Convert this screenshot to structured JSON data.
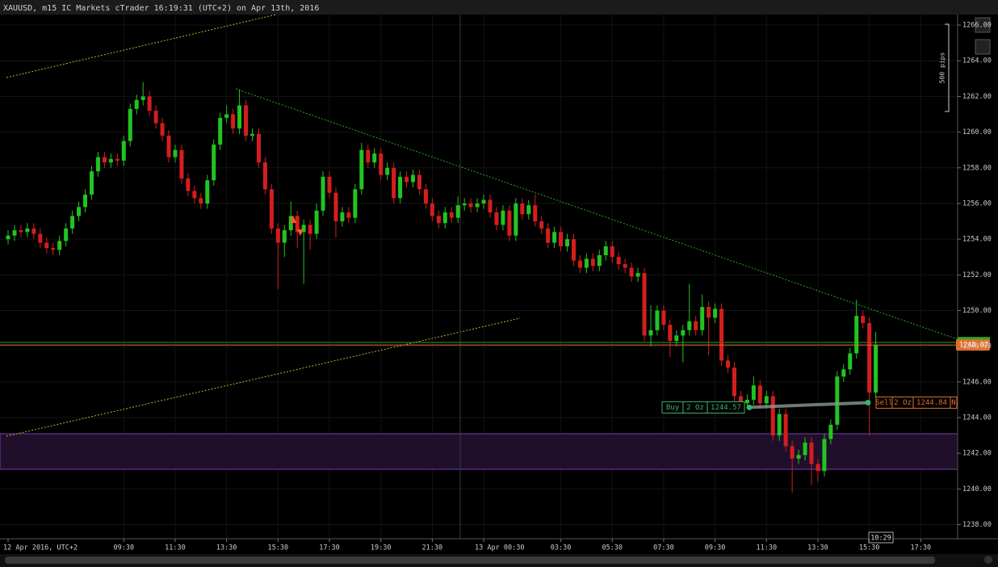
{
  "header": {
    "title": "XAUUSD, m15 IC Markets cTrader 16:19:31 (UTC+2) on Apr 13th, 2016"
  },
  "chart_data": {
    "type": "candlestick",
    "up_color": "#22c422",
    "down_color": "#d41e1e",
    "open": [
      1254.0,
      1254.2,
      1254.5,
      1254.4,
      1254.6,
      1254.3,
      1253.8,
      1253.5,
      1253.4,
      1253.9,
      1254.6,
      1255.3,
      1255.8,
      1256.5,
      1257.8,
      1258.6,
      1258.3,
      1258.5,
      1258.4,
      1259.5,
      1261.3,
      1261.8,
      1262.0,
      1261.2,
      1260.5,
      1259.8,
      1258.6,
      1259.0,
      1257.4,
      1256.7,
      1256.3,
      1256.0,
      1257.3,
      1259.3,
      1260.8,
      1261.0,
      1260.2,
      1261.5,
      1259.8,
      1259.9,
      1258.3,
      1256.8,
      1254.6,
      1253.8,
      1254.5,
      1255.3,
      1254.4,
      1254.8,
      1254.3,
      1255.6,
      1257.5,
      1256.6,
      1255.0,
      1255.5,
      1255.2,
      1256.8,
      1259.0,
      1258.3,
      1258.8,
      1257.6,
      1258.0,
      1256.3,
      1257.5,
      1257.2,
      1257.6,
      1256.8,
      1256.0,
      1255.3,
      1254.9,
      1255.5,
      1255.2,
      1255.9,
      1256.0,
      1255.8,
      1256.0,
      1256.2,
      1255.5,
      1254.8,
      1255.6,
      1254.2,
      1256.0,
      1255.4,
      1255.9,
      1255.0,
      1254.6,
      1253.8,
      1254.4,
      1253.6,
      1254.0,
      1252.8,
      1252.4,
      1252.9,
      1252.5,
      1253.1,
      1253.6,
      1253.0,
      1252.6,
      1252.4,
      1251.9,
      1252.1,
      1248.6,
      1248.9,
      1250.0,
      1249.2,
      1248.3,
      1248.6,
      1248.9,
      1249.4,
      1248.9,
      1250.2,
      1249.6,
      1250.1,
      1247.2,
      1246.8,
      1245.2,
      1244.8,
      1245.0,
      1245.8,
      1244.8,
      1245.2,
      1243.0,
      1244.2,
      1242.4,
      1241.7,
      1241.9,
      1242.6,
      1241.4,
      1241.0,
      1242.8,
      1243.6,
      1246.3,
      1246.7,
      1247.6,
      1249.7,
      1249.3,
      1245.4
    ],
    "high": [
      1254.5,
      1254.8,
      1254.8,
      1254.9,
      1254.9,
      1254.6,
      1254.1,
      1253.8,
      1254.2,
      1254.9,
      1255.6,
      1256.1,
      1256.8,
      1258.1,
      1258.9,
      1258.9,
      1258.8,
      1258.8,
      1259.8,
      1261.6,
      1262.1,
      1262.8,
      1262.3,
      1261.5,
      1260.8,
      1260.1,
      1259.3,
      1259.3,
      1257.7,
      1257.0,
      1256.6,
      1257.6,
      1259.6,
      1261.1,
      1261.5,
      1261.3,
      1262.4,
      1261.8,
      1260.2,
      1260.2,
      1258.6,
      1257.1,
      1254.9,
      1254.8,
      1256.1,
      1255.6,
      1255.1,
      1255.1,
      1256.0,
      1257.8,
      1257.8,
      1256.9,
      1255.8,
      1255.8,
      1257.1,
      1259.4,
      1259.3,
      1259.1,
      1259.1,
      1258.3,
      1258.3,
      1257.8,
      1257.8,
      1257.9,
      1257.9,
      1257.1,
      1256.3,
      1255.6,
      1255.8,
      1255.8,
      1256.4,
      1256.3,
      1256.3,
      1256.3,
      1256.5,
      1256.5,
      1255.8,
      1255.9,
      1255.9,
      1256.3,
      1256.3,
      1256.2,
      1256.5,
      1255.3,
      1254.9,
      1254.7,
      1254.7,
      1254.3,
      1254.3,
      1253.1,
      1253.2,
      1253.2,
      1253.4,
      1253.9,
      1253.9,
      1253.3,
      1252.9,
      1252.7,
      1252.4,
      1252.4,
      1250.3,
      1250.3,
      1250.3,
      1249.5,
      1248.9,
      1249.2,
      1251.5,
      1249.7,
      1250.9,
      1250.5,
      1250.4,
      1250.4,
      1247.5,
      1247.1,
      1245.5,
      1245.3,
      1246.3,
      1246.1,
      1245.5,
      1245.5,
      1244.5,
      1244.5,
      1242.7,
      1242.2,
      1242.9,
      1242.9,
      1241.7,
      1243.1,
      1243.9,
      1246.6,
      1247.0,
      1247.9,
      1250.6,
      1250.0,
      1249.6,
      1248.8
    ],
    "low": [
      1253.7,
      1253.9,
      1254.1,
      1254.1,
      1254.0,
      1253.5,
      1253.2,
      1253.1,
      1253.1,
      1253.6,
      1254.3,
      1255.0,
      1255.5,
      1256.2,
      1257.5,
      1258.0,
      1258.0,
      1258.1,
      1258.1,
      1259.2,
      1261.0,
      1261.5,
      1260.9,
      1260.2,
      1259.5,
      1258.3,
      1258.3,
      1257.1,
      1256.4,
      1256.0,
      1255.7,
      1255.7,
      1257.0,
      1259.0,
      1260.5,
      1259.9,
      1259.9,
      1259.5,
      1259.5,
      1258.0,
      1256.5,
      1254.3,
      1251.2,
      1253.0,
      1254.2,
      1253.5,
      1251.5,
      1253.4,
      1254.0,
      1255.3,
      1256.3,
      1254.1,
      1254.7,
      1254.9,
      1254.9,
      1256.5,
      1258.0,
      1258.0,
      1257.3,
      1257.3,
      1256.0,
      1256.0,
      1256.9,
      1256.9,
      1256.5,
      1255.7,
      1255.0,
      1254.6,
      1254.6,
      1254.9,
      1254.9,
      1255.6,
      1255.5,
      1255.5,
      1255.7,
      1255.2,
      1254.5,
      1254.5,
      1253.9,
      1253.9,
      1255.1,
      1255.1,
      1254.7,
      1254.3,
      1253.5,
      1253.5,
      1253.3,
      1253.3,
      1252.5,
      1252.1,
      1252.1,
      1252.2,
      1252.2,
      1252.8,
      1252.7,
      1252.3,
      1252.1,
      1251.6,
      1251.6,
      1248.3,
      1248.0,
      1248.6,
      1248.9,
      1247.4,
      1248.0,
      1247.1,
      1248.6,
      1248.6,
      1248.6,
      1247.5,
      1249.3,
      1246.9,
      1246.5,
      1244.9,
      1244.5,
      1244.5,
      1244.7,
      1244.5,
      1244.5,
      1242.7,
      1242.7,
      1242.1,
      1239.8,
      1241.4,
      1241.6,
      1240.2,
      1240.4,
      1240.7,
      1242.5,
      1243.3,
      1246.0,
      1246.4,
      1247.3,
      1249.0,
      1243.0,
      1245.1
    ],
    "close": [
      1254.2,
      1254.5,
      1254.4,
      1254.6,
      1254.3,
      1253.8,
      1253.5,
      1253.4,
      1253.9,
      1254.6,
      1255.3,
      1255.8,
      1256.5,
      1257.8,
      1258.6,
      1258.3,
      1258.5,
      1258.4,
      1259.5,
      1261.3,
      1261.8,
      1262.0,
      1261.2,
      1260.5,
      1259.8,
      1258.6,
      1259.0,
      1257.4,
      1256.7,
      1256.3,
      1256.0,
      1257.3,
      1259.3,
      1260.8,
      1261.0,
      1260.2,
      1261.5,
      1259.8,
      1259.9,
      1258.3,
      1256.8,
      1254.6,
      1253.8,
      1254.5,
      1255.3,
      1254.4,
      1254.8,
      1254.3,
      1255.6,
      1257.5,
      1256.6,
      1255.0,
      1255.5,
      1255.2,
      1256.8,
      1259.0,
      1258.3,
      1258.8,
      1257.6,
      1258.0,
      1256.3,
      1257.5,
      1257.2,
      1257.6,
      1256.8,
      1256.0,
      1255.3,
      1254.9,
      1255.5,
      1255.2,
      1255.9,
      1256.0,
      1255.8,
      1256.0,
      1256.2,
      1255.5,
      1254.8,
      1255.6,
      1254.2,
      1256.0,
      1255.4,
      1255.9,
      1255.0,
      1254.6,
      1253.8,
      1254.4,
      1253.6,
      1254.0,
      1252.8,
      1252.4,
      1252.9,
      1252.5,
      1253.1,
      1253.6,
      1253.0,
      1252.6,
      1252.4,
      1251.9,
      1252.1,
      1248.6,
      1248.9,
      1250.0,
      1249.2,
      1248.3,
      1248.6,
      1248.9,
      1249.4,
      1248.9,
      1250.2,
      1249.6,
      1250.1,
      1247.2,
      1246.8,
      1245.2,
      1244.8,
      1245.0,
      1245.8,
      1244.8,
      1245.2,
      1243.0,
      1244.2,
      1242.4,
      1241.7,
      1241.9,
      1242.6,
      1241.4,
      1241.0,
      1242.8,
      1243.6,
      1246.3,
      1246.7,
      1247.6,
      1249.7,
      1249.3,
      1245.4,
      1248.07
    ],
    "ylim": [
      1237.3,
      1266.5
    ],
    "yticks": [
      {
        "value": 1238,
        "label": "1238.00"
      },
      {
        "value": 1240,
        "label": "1240.00"
      },
      {
        "value": 1242,
        "label": "1242.00"
      },
      {
        "value": 1244,
        "label": "1244.00"
      },
      {
        "value": 1246,
        "label": "1246.00"
      },
      {
        "value": 1248,
        "label": "1248.00"
      },
      {
        "value": 1250,
        "label": "1250.00"
      },
      {
        "value": 1252,
        "label": "1252.00"
      },
      {
        "value": 1254,
        "label": "1254.00"
      },
      {
        "value": 1256,
        "label": "1256.00"
      },
      {
        "value": 1258,
        "label": "1258.00"
      },
      {
        "value": 1260,
        "label": "1260.00"
      },
      {
        "value": 1262,
        "label": "1262.00"
      },
      {
        "value": 1264,
        "label": "1264.00"
      },
      {
        "value": 1266,
        "label": "1266.00"
      }
    ],
    "xticks": [
      {
        "value": 0,
        "label": "12 Apr 2016, UTC+2"
      },
      {
        "value": 18,
        "label": "09:30"
      },
      {
        "value": 26,
        "label": "11:30"
      },
      {
        "value": 34,
        "label": "13:30"
      },
      {
        "value": 42,
        "label": "15:30"
      },
      {
        "value": 50,
        "label": "17:30"
      },
      {
        "value": 58,
        "label": "19:30"
      },
      {
        "value": 66,
        "label": "21:30"
      },
      {
        "value": 74,
        "label": "13 Apr 00:30"
      },
      {
        "value": 86,
        "label": "03:30"
      },
      {
        "value": 94,
        "label": "05:30"
      },
      {
        "value": 102,
        "label": "07:30"
      },
      {
        "value": 110,
        "label": "09:30"
      },
      {
        "value": 118,
        "label": "11:30"
      },
      {
        "value": 126,
        "label": "13:30"
      },
      {
        "value": 134,
        "label": "15:30"
      },
      {
        "value": 142,
        "label": "17:30"
      }
    ],
    "grid": true,
    "current_price": 1248.07,
    "range_label": "500 pips",
    "cursor_time": "10:29",
    "positions": [
      {
        "side": "Buy",
        "size": "2 Oz",
        "price": 1244.57
      },
      {
        "side": "Sell",
        "size": "2 Oz",
        "price": 1244.84,
        "more": "N"
      }
    ]
  }
}
